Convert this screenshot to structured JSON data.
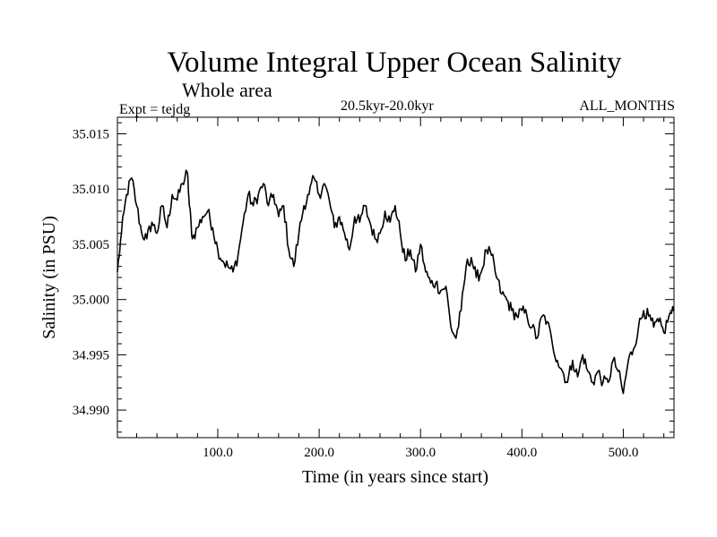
{
  "chart_data": {
    "type": "line",
    "title": "Volume Integral Upper Ocean Salinity",
    "subtitle": "Whole area",
    "experiment": "Expt = tejdg",
    "period": "20.5kyr-20.0kyr",
    "months": "ALL_MONTHS",
    "xlabel": "Time (in years since start)",
    "ylabel": "Salinity (in PSU)",
    "xlim": [
      1,
      550
    ],
    "ylim": [
      34.9875,
      35.0165
    ],
    "x_ticks": [
      100,
      200,
      300,
      400,
      500
    ],
    "x_tick_labels": [
      "100.0",
      "200.0",
      "300.0",
      "400.0",
      "500.0"
    ],
    "y_ticks": [
      34.99,
      34.995,
      35.0,
      35.005,
      35.01,
      35.015
    ],
    "y_tick_labels": [
      "34.990",
      "34.995",
      "35.000",
      "35.005",
      "35.010",
      "35.015"
    ],
    "grid": false,
    "series": [
      {
        "name": "Salinity",
        "x": [
          1,
          5,
          10,
          15,
          20,
          25,
          30,
          35,
          40,
          45,
          50,
          55,
          60,
          65,
          70,
          72,
          75,
          80,
          85,
          90,
          95,
          100,
          105,
          110,
          115,
          120,
          125,
          130,
          135,
          140,
          145,
          150,
          155,
          160,
          165,
          170,
          175,
          180,
          185,
          190,
          195,
          200,
          205,
          210,
          215,
          220,
          225,
          230,
          235,
          240,
          245,
          250,
          255,
          260,
          265,
          270,
          275,
          280,
          285,
          290,
          295,
          300,
          305,
          310,
          315,
          320,
          325,
          330,
          335,
          340,
          345,
          350,
          355,
          360,
          365,
          370,
          375,
          380,
          385,
          390,
          395,
          400,
          405,
          410,
          415,
          420,
          425,
          430,
          435,
          440,
          445,
          450,
          455,
          460,
          465,
          470,
          475,
          480,
          485,
          490,
          495,
          500,
          505,
          510,
          515,
          520,
          525,
          530,
          535,
          540,
          545,
          550
        ],
        "values": [
          35.0025,
          35.006,
          35.0095,
          35.011,
          35.0085,
          35.006,
          35.0055,
          35.007,
          35.006,
          35.0085,
          35.0065,
          35.0095,
          35.009,
          35.0105,
          35.0115,
          35.0085,
          35.0055,
          35.0065,
          35.0075,
          35.008,
          35.0065,
          35.0045,
          35.0035,
          35.003,
          35.0025,
          35.004,
          35.007,
          35.0095,
          35.0085,
          35.0095,
          35.0105,
          35.0085,
          35.0095,
          35.0075,
          35.0085,
          35.0045,
          35.003,
          35.006,
          35.0085,
          35.0095,
          35.011,
          35.0095,
          35.0105,
          35.009,
          35.0065,
          35.0075,
          35.006,
          35.0045,
          35.0075,
          35.007,
          35.0085,
          35.007,
          35.0055,
          35.006,
          35.008,
          35.007,
          35.0085,
          35.006,
          35.0035,
          35.0045,
          35.0025,
          35.005,
          35.0025,
          35.0015,
          35.0015,
          35.0008,
          35.0012,
          34.9975,
          34.9965,
          34.999,
          35.003,
          35.0038,
          35.002,
          35.0025,
          35.0045,
          35.004,
          35.002,
          35.0005,
          35.0,
          34.999,
          34.9985,
          34.999,
          34.9985,
          34.9975,
          34.9965,
          34.9985,
          34.998,
          34.996,
          34.9945,
          34.9935,
          34.9925,
          34.9945,
          34.993,
          34.995,
          34.9935,
          34.9925,
          34.9935,
          34.9925,
          34.9925,
          34.9945,
          34.9935,
          34.9915,
          34.9945,
          34.9955,
          34.9975,
          34.999,
          34.9985,
          34.9975,
          34.998,
          34.997,
          34.9985,
          34.999
        ]
      }
    ]
  }
}
